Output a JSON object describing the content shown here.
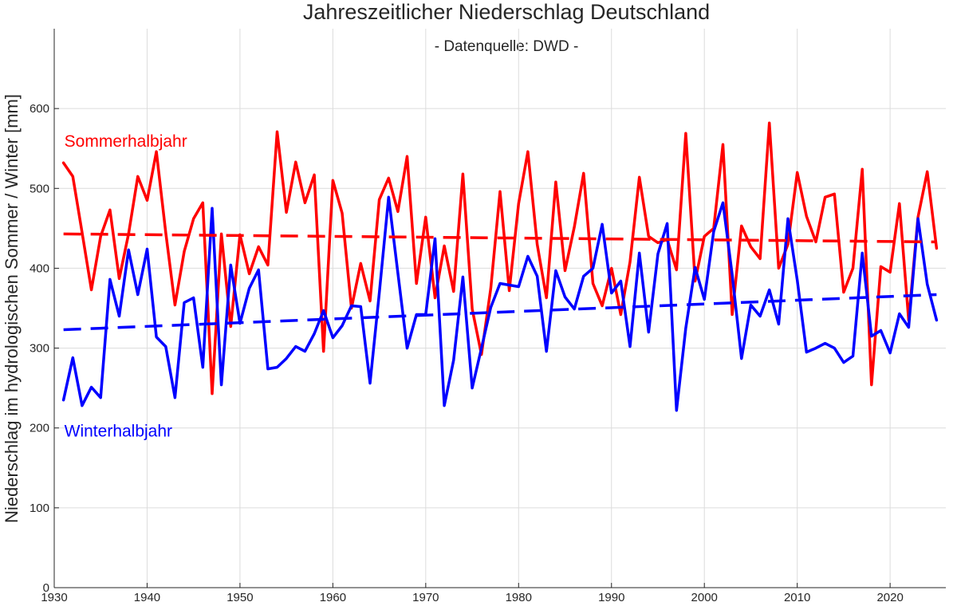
{
  "chart_data": {
    "type": "line",
    "title": "Jahreszeitlicher Niederschlag Deutschland",
    "subtitle": "- Datenquelle: DWD -",
    "xlabel": "",
    "ylabel": "Niederschlag im hydrologischen Sommer / Winter [mm]",
    "xlim": [
      1930,
      2026
    ],
    "ylim": [
      0,
      700
    ],
    "xticks": [
      1930,
      1940,
      1950,
      1960,
      1970,
      1980,
      1990,
      2000,
      2010,
      2020
    ],
    "yticks": [
      0,
      100,
      200,
      300,
      400,
      500,
      600
    ],
    "grid": true,
    "x_start": 1931,
    "series": [
      {
        "name": "Sommerhalbjahr",
        "color": "#ff0000",
        "values": [
          532,
          515,
          445,
          373,
          440,
          473,
          387,
          443,
          515,
          485,
          546,
          445,
          354,
          421,
          462,
          482,
          243,
          443,
          327,
          442,
          393,
          427,
          404,
          571,
          470,
          533,
          482,
          517,
          296,
          510,
          469,
          350,
          406,
          359,
          486,
          513,
          471,
          540,
          381,
          464,
          363,
          428,
          371,
          518,
          349,
          292,
          375,
          496,
          372,
          481,
          546,
          430,
          363,
          508,
          397,
          452,
          519,
          381,
          353,
          400,
          342,
          408,
          514,
          440,
          432,
          436,
          398,
          569,
          384,
          440,
          450,
          555,
          342,
          453,
          427,
          412,
          582,
          400,
          430,
          520,
          465,
          433,
          489,
          493,
          370,
          400,
          524,
          254,
          402,
          395,
          481,
          335,
          464,
          521,
          425
        ]
      },
      {
        "name": "Winterhalbjahr",
        "color": "#0000ff",
        "values": [
          235,
          288,
          228,
          251,
          238,
          386,
          340,
          423,
          367,
          424,
          314,
          302,
          238,
          357,
          363,
          276,
          475,
          254,
          404,
          331,
          375,
          398,
          274,
          276,
          287,
          302,
          296,
          318,
          347,
          313,
          328,
          353,
          352,
          256,
          369,
          489,
          394,
          300,
          342,
          342,
          437,
          228,
          285,
          389,
          250,
          300,
          351,
          381,
          379,
          377,
          415,
          390,
          296,
          397,
          364,
          349,
          390,
          400,
          455,
          369,
          384,
          302,
          419,
          320,
          418,
          456,
          222,
          325,
          401,
          361,
          446,
          482,
          392,
          287,
          354,
          340,
          373,
          330,
          462,
          385,
          295,
          300,
          306,
          300,
          282,
          290,
          419,
          315,
          322,
          294,
          343,
          326,
          462,
          380,
          335
        ]
      },
      {
        "name": "",
        "kind": "trend",
        "color": "#ff0000",
        "start": [
          1931,
          443
        ],
        "end": [
          2025,
          433
        ]
      },
      {
        "name": "",
        "kind": "trend",
        "color": "#0000ff",
        "start": [
          1931,
          323
        ],
        "end": [
          2025,
          367
        ]
      }
    ],
    "annotations": [
      {
        "text": "Sommerhalbjahr",
        "color": "#ff0000",
        "x": 1931,
        "y": 560
      },
      {
        "text": "Winterhalbjahr",
        "color": "#0000ff",
        "x": 1931,
        "y": 197
      }
    ]
  }
}
